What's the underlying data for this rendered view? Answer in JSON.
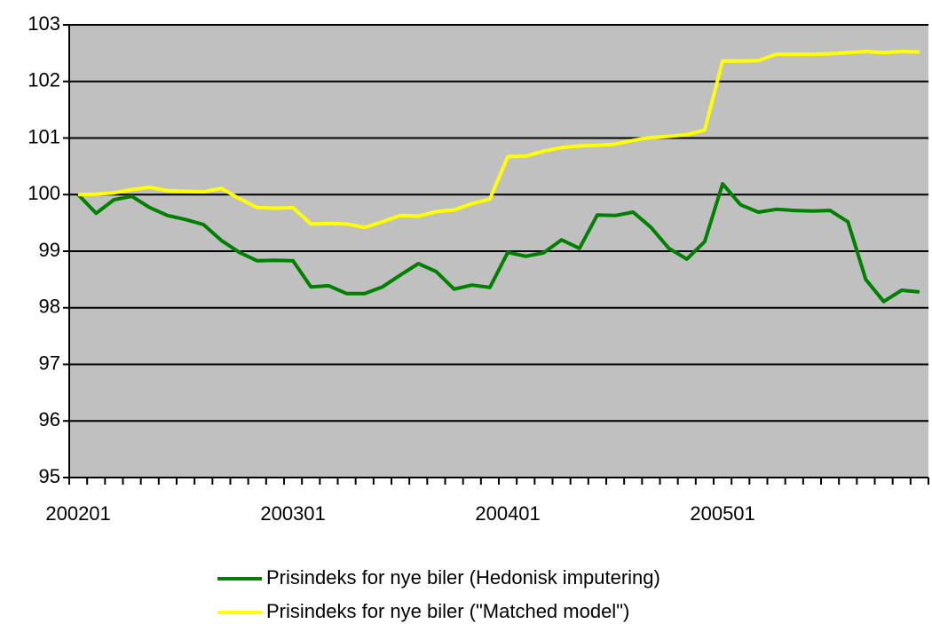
{
  "chart_data": {
    "type": "line",
    "categories": [
      "200201",
      null,
      null,
      null,
      null,
      null,
      null,
      null,
      null,
      null,
      null,
      null,
      "200301",
      null,
      null,
      null,
      null,
      null,
      null,
      null,
      null,
      null,
      null,
      null,
      "200401",
      null,
      null,
      null,
      null,
      null,
      null,
      null,
      null,
      null,
      null,
      null,
      "200501",
      null,
      null,
      null,
      null,
      null,
      null,
      null,
      null,
      null,
      null,
      null
    ],
    "series": [
      {
        "name": "Prisindeks for nye biler (Hedonisk imputering)",
        "color": "#008000",
        "values": [
          100.0,
          99.67,
          99.91,
          99.97,
          99.77,
          99.63,
          99.56,
          99.47,
          99.19,
          98.98,
          98.83,
          98.84,
          98.83,
          98.37,
          98.39,
          98.25,
          98.25,
          98.37,
          98.58,
          98.78,
          98.64,
          98.33,
          98.4,
          98.36,
          98.98,
          98.91,
          98.97,
          99.2,
          99.05,
          99.64,
          99.63,
          99.69,
          99.42,
          99.05,
          98.86,
          99.17,
          100.19,
          99.82,
          99.69,
          99.74,
          99.72,
          99.71,
          99.72,
          99.52,
          98.5,
          98.11,
          98.31,
          98.28
        ]
      },
      {
        "name": "Prisindeks for nye biler (\"Matched model\")",
        "color": "#ffff00",
        "values": [
          100.0,
          100.01,
          100.03,
          100.09,
          100.13,
          100.07,
          100.06,
          100.05,
          100.11,
          99.93,
          99.77,
          99.76,
          99.77,
          99.48,
          99.49,
          99.48,
          99.42,
          99.52,
          99.63,
          99.62,
          99.7,
          99.73,
          99.84,
          99.92,
          100.67,
          100.68,
          100.77,
          100.83,
          100.86,
          100.87,
          100.89,
          100.96,
          101.01,
          101.03,
          101.06,
          101.14,
          102.36,
          102.36,
          102.37,
          102.48,
          102.48,
          102.48,
          102.49,
          102.51,
          102.53,
          102.51,
          102.53,
          102.52
        ]
      }
    ],
    "ylim": [
      95,
      103
    ],
    "yticks": [
      95,
      96,
      97,
      98,
      99,
      100,
      101,
      102,
      103
    ],
    "grid": true,
    "plot_background": "#c0c0c0"
  }
}
